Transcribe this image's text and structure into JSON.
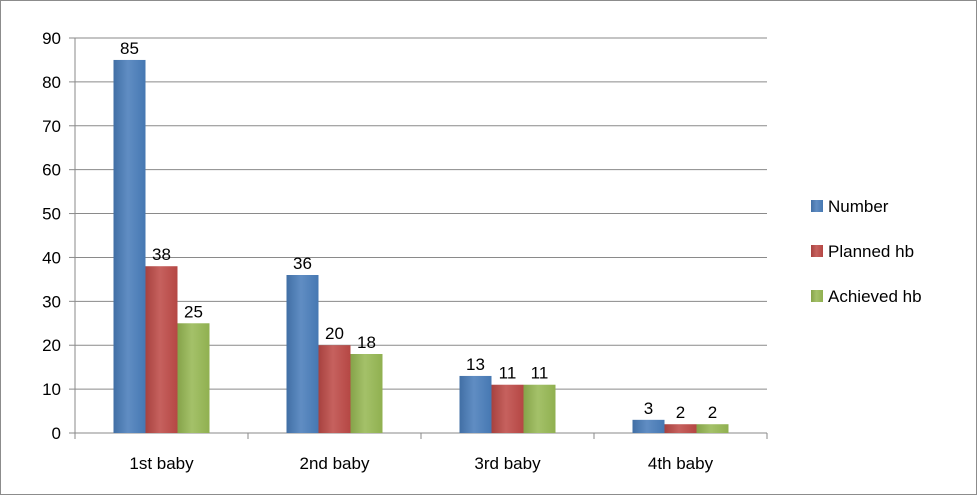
{
  "chart_data": {
    "type": "bar",
    "title": "",
    "xlabel": "",
    "ylabel": "",
    "categories": [
      "1st baby",
      "2nd baby",
      "3rd baby",
      "4th baby"
    ],
    "series": [
      {
        "name": "Number",
        "values": [
          85,
          36,
          13,
          3
        ],
        "color": "#4a7ebb"
      },
      {
        "name": "Planned hb",
        "values": [
          38,
          20,
          11,
          2
        ],
        "color": "#be4b48"
      },
      {
        "name": "Achieved hb",
        "values": [
          25,
          18,
          11,
          2
        ],
        "color": "#98b954"
      }
    ],
    "ylim": [
      0,
      90
    ],
    "yticks": [
      "0",
      "10",
      "20",
      "30",
      "40",
      "50",
      "60",
      "70",
      "80",
      "90"
    ],
    "grid": true,
    "legend": "right",
    "data_labels": true
  }
}
